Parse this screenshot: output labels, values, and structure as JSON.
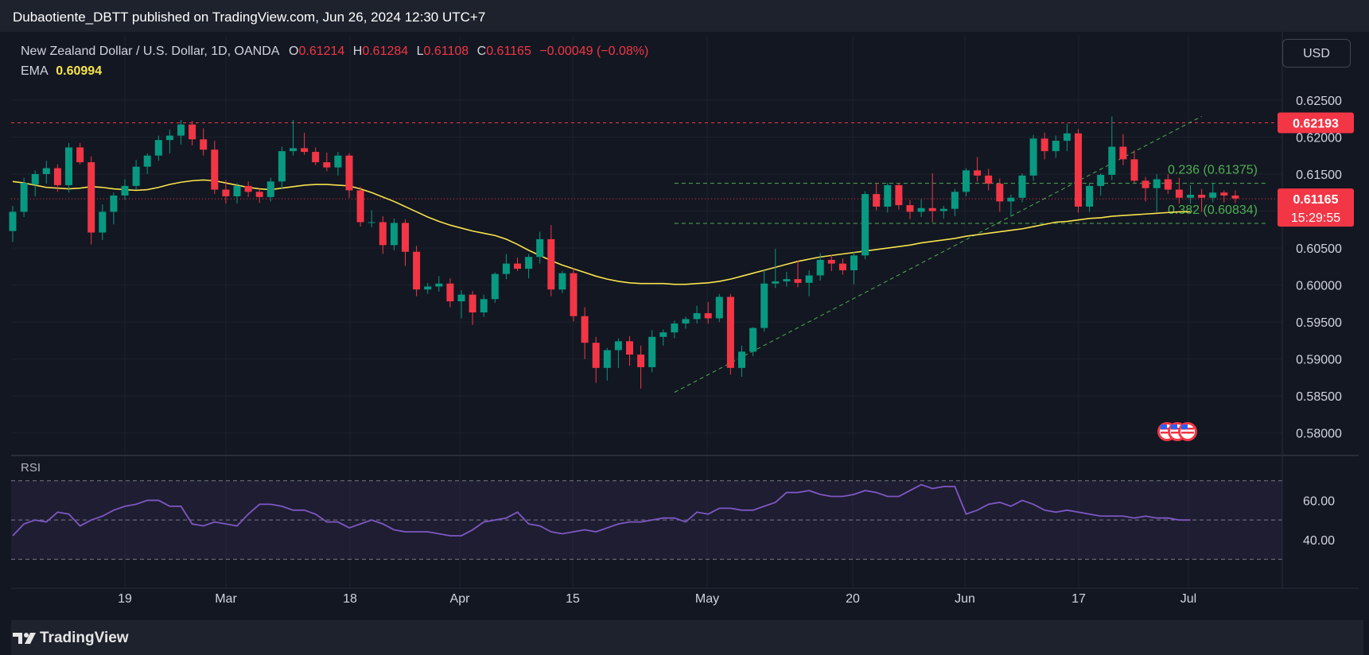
{
  "header": {
    "publisher": "Dubaotiente_DBTT published on TradingView.com, Jun 26, 2024 12:30 UTC+7"
  },
  "legend": {
    "symbol": "New Zealand Dollar / U.S. Dollar, 1D, OANDA",
    "o_label": "O",
    "o_value": "0.61214",
    "h_label": "H",
    "h_value": "0.61284",
    "l_label": "L",
    "l_value": "0.61108",
    "c_label": "C",
    "c_value": "0.61165",
    "change": "−0.00049 (−0.08%)",
    "ema_label": "EMA",
    "ema_value": "0.60994"
  },
  "currency_button": "USD",
  "rsi_label": "RSI",
  "footer": {
    "brand": "TradingView"
  },
  "colors": {
    "up": "#089981",
    "down": "#f23645",
    "ema": "#f7e34c",
    "rsi": "#7e57c2",
    "fib": "#4caf50",
    "background": "#131722"
  },
  "chart_data": {
    "type": "candlestick",
    "symbol": "NZDUSD",
    "y_range": [
      0.5775,
      0.628
    ],
    "price_ticks": [
      "0.62500",
      "0.62000",
      "0.61500",
      "0.61000",
      "0.60500",
      "0.60000",
      "0.59500",
      "0.59000",
      "0.58500",
      "0.58000"
    ],
    "x_ticks": [
      "19",
      "Mar",
      "18",
      "Apr",
      "15",
      "May",
      "20",
      "Jun",
      "17",
      "Jul"
    ],
    "last_price_label": "0.61165",
    "countdown_label": "15:29:55",
    "resistance_label": "0.62193",
    "resistance": 0.62193,
    "last_price": 0.61165,
    "fib_levels": [
      {
        "label": "0.236 (0.61375)",
        "value": 0.61375
      },
      {
        "label": "0.382 (0.60834)",
        "value": 0.60834
      }
    ],
    "trendline": {
      "from": {
        "index": 59,
        "price": 0.5855
      },
      "to": {
        "index": 106,
        "price": 0.6228
      }
    },
    "fib_start_index": 59,
    "candles": [
      [
        0.6073,
        0.6107,
        0.6058,
        0.6099
      ],
      [
        0.6099,
        0.6145,
        0.6092,
        0.6138
      ],
      [
        0.6136,
        0.6155,
        0.612,
        0.615
      ],
      [
        0.615,
        0.6168,
        0.6137,
        0.6158
      ],
      [
        0.6158,
        0.6163,
        0.6126,
        0.6135
      ],
      [
        0.6135,
        0.6192,
        0.6125,
        0.6186
      ],
      [
        0.6186,
        0.6192,
        0.6163,
        0.6166
      ],
      [
        0.6166,
        0.6174,
        0.6055,
        0.6071
      ],
      [
        0.6071,
        0.6109,
        0.6061,
        0.6099
      ],
      [
        0.6099,
        0.6125,
        0.6082,
        0.6121
      ],
      [
        0.6121,
        0.6143,
        0.6115,
        0.6134
      ],
      [
        0.6134,
        0.6169,
        0.6129,
        0.616
      ],
      [
        0.616,
        0.6178,
        0.615,
        0.6175
      ],
      [
        0.6175,
        0.6202,
        0.6168,
        0.6196
      ],
      [
        0.6196,
        0.621,
        0.6178,
        0.6202
      ],
      [
        0.6202,
        0.6223,
        0.619,
        0.6217
      ],
      [
        0.6217,
        0.6222,
        0.6189,
        0.6197
      ],
      [
        0.6197,
        0.6212,
        0.6175,
        0.6183
      ],
      [
        0.6183,
        0.6195,
        0.6123,
        0.6129
      ],
      [
        0.6129,
        0.6142,
        0.611,
        0.612
      ],
      [
        0.612,
        0.6138,
        0.611,
        0.6134
      ],
      [
        0.6134,
        0.614,
        0.6119,
        0.6126
      ],
      [
        0.6126,
        0.613,
        0.6111,
        0.6119
      ],
      [
        0.6119,
        0.6145,
        0.6113,
        0.614
      ],
      [
        0.614,
        0.6187,
        0.613,
        0.6181
      ],
      [
        0.6181,
        0.6223,
        0.6175,
        0.6185
      ],
      [
        0.6185,
        0.6206,
        0.6176,
        0.618
      ],
      [
        0.618,
        0.6186,
        0.6162,
        0.6166
      ],
      [
        0.6166,
        0.6179,
        0.6154,
        0.6159
      ],
      [
        0.6159,
        0.618,
        0.6148,
        0.6175
      ],
      [
        0.6175,
        0.6178,
        0.6118,
        0.6128
      ],
      [
        0.6128,
        0.6133,
        0.6079,
        0.6085
      ],
      [
        0.6085,
        0.6101,
        0.6078,
        0.6085
      ],
      [
        0.6085,
        0.6093,
        0.6042,
        0.6054
      ],
      [
        0.6054,
        0.609,
        0.6047,
        0.6084
      ],
      [
        0.6084,
        0.6089,
        0.6026,
        0.6045
      ],
      [
        0.6045,
        0.6053,
        0.5985,
        0.5994
      ],
      [
        0.5994,
        0.6003,
        0.5988,
        0.5998
      ],
      [
        0.5998,
        0.6012,
        0.5991,
        0.6002
      ],
      [
        0.6002,
        0.6009,
        0.597,
        0.5978
      ],
      [
        0.5978,
        0.5993,
        0.5955,
        0.5987
      ],
      [
        0.5987,
        0.5992,
        0.5946,
        0.5963
      ],
      [
        0.5963,
        0.5987,
        0.5957,
        0.5981
      ],
      [
        0.5981,
        0.6017,
        0.5976,
        0.6015
      ],
      [
        0.6015,
        0.6042,
        0.6008,
        0.6029
      ],
      [
        0.6029,
        0.6037,
        0.6019,
        0.6022
      ],
      [
        0.6022,
        0.6042,
        0.6009,
        0.6038
      ],
      [
        0.6038,
        0.6072,
        0.6029,
        0.6062
      ],
      [
        0.6062,
        0.6081,
        0.5985,
        0.5994
      ],
      [
        0.5994,
        0.6019,
        0.5989,
        0.6016
      ],
      [
        0.6016,
        0.6023,
        0.5951,
        0.5958
      ],
      [
        0.5958,
        0.597,
        0.59,
        0.5922
      ],
      [
        0.5922,
        0.593,
        0.5868,
        0.5888
      ],
      [
        0.5888,
        0.5915,
        0.5871,
        0.5912
      ],
      [
        0.5912,
        0.5928,
        0.5888,
        0.5924
      ],
      [
        0.5924,
        0.5931,
        0.5891,
        0.5906
      ],
      [
        0.5906,
        0.5918,
        0.586,
        0.5889
      ],
      [
        0.5889,
        0.5939,
        0.5882,
        0.593
      ],
      [
        0.593,
        0.594,
        0.5918,
        0.5936
      ],
      [
        0.5936,
        0.5952,
        0.5928,
        0.5948
      ],
      [
        0.5948,
        0.5957,
        0.5941,
        0.5954
      ],
      [
        0.5954,
        0.5972,
        0.5948,
        0.5962
      ],
      [
        0.5962,
        0.5977,
        0.5948,
        0.5955
      ],
      [
        0.5955,
        0.5988,
        0.595,
        0.5984
      ],
      [
        0.5984,
        0.5988,
        0.5879,
        0.5888
      ],
      [
        0.5888,
        0.5918,
        0.5876,
        0.591
      ],
      [
        0.591,
        0.5943,
        0.5904,
        0.5942
      ],
      [
        0.5942,
        0.602,
        0.5937,
        0.6002
      ],
      [
        0.6002,
        0.6049,
        0.5996,
        0.6005
      ],
      [
        0.6005,
        0.6018,
        0.5998,
        0.6008
      ],
      [
        0.6008,
        0.6033,
        0.5997,
        0.6003
      ],
      [
        0.6003,
        0.602,
        0.5985,
        0.6013
      ],
      [
        0.6013,
        0.6043,
        0.6006,
        0.6034
      ],
      [
        0.6034,
        0.6041,
        0.6019,
        0.6029
      ],
      [
        0.6029,
        0.6036,
        0.6014,
        0.602
      ],
      [
        0.602,
        0.6045,
        0.6001,
        0.604
      ],
      [
        0.604,
        0.6127,
        0.6035,
        0.6123
      ],
      [
        0.6123,
        0.6138,
        0.6101,
        0.6106
      ],
      [
        0.6106,
        0.6138,
        0.6098,
        0.6135
      ],
      [
        0.6135,
        0.6138,
        0.6102,
        0.6108
      ],
      [
        0.6108,
        0.6115,
        0.6089,
        0.6099
      ],
      [
        0.6099,
        0.6116,
        0.6092,
        0.6104
      ],
      [
        0.6104,
        0.6151,
        0.6085,
        0.61
      ],
      [
        0.61,
        0.6107,
        0.609,
        0.6103
      ],
      [
        0.6103,
        0.613,
        0.6093,
        0.6126
      ],
      [
        0.6126,
        0.6158,
        0.612,
        0.6155
      ],
      [
        0.6155,
        0.6173,
        0.614,
        0.6148
      ],
      [
        0.6148,
        0.6157,
        0.6128,
        0.6137
      ],
      [
        0.6137,
        0.6144,
        0.6099,
        0.6113
      ],
      [
        0.6113,
        0.6122,
        0.6093,
        0.6118
      ],
      [
        0.6118,
        0.6151,
        0.6112,
        0.6148
      ],
      [
        0.6148,
        0.6203,
        0.6141,
        0.6198
      ],
      [
        0.6198,
        0.6206,
        0.617,
        0.6181
      ],
      [
        0.6181,
        0.6202,
        0.6172,
        0.6195
      ],
      [
        0.6195,
        0.6218,
        0.6181,
        0.6205
      ],
      [
        0.6205,
        0.6211,
        0.6098,
        0.6106
      ],
      [
        0.6106,
        0.6138,
        0.6099,
        0.6134
      ],
      [
        0.6134,
        0.6151,
        0.6121,
        0.6149
      ],
      [
        0.6149,
        0.6228,
        0.6142,
        0.6187
      ],
      [
        0.6187,
        0.6204,
        0.6162,
        0.617
      ],
      [
        0.617,
        0.6182,
        0.6138,
        0.6141
      ],
      [
        0.6141,
        0.6146,
        0.6113,
        0.6131
      ],
      [
        0.6131,
        0.615,
        0.6099,
        0.6143
      ],
      [
        0.6143,
        0.615,
        0.6123,
        0.6129
      ],
      [
        0.6129,
        0.6145,
        0.611,
        0.6118
      ],
      [
        0.6118,
        0.6135,
        0.611,
        0.6122
      ],
      [
        0.6122,
        0.613,
        0.6099,
        0.6118
      ],
      [
        0.6118,
        0.6138,
        0.6112,
        0.6125
      ],
      [
        0.6125,
        0.6128,
        0.6112,
        0.6121
      ],
      [
        0.6121,
        0.6128,
        0.6111,
        0.6117
      ]
    ],
    "ema": [
      0.614,
      0.6138,
      0.6135,
      0.6132,
      0.6131,
      0.613,
      0.6131,
      0.6133,
      0.6132,
      0.613,
      0.6129,
      0.6128,
      0.6129,
      0.6132,
      0.6136,
      0.6139,
      0.6141,
      0.6142,
      0.6141,
      0.6138,
      0.6135,
      0.6132,
      0.613,
      0.6129,
      0.6131,
      0.6133,
      0.6135,
      0.6136,
      0.6136,
      0.6135,
      0.6134,
      0.613,
      0.6125,
      0.6119,
      0.6113,
      0.6106,
      0.6099,
      0.6092,
      0.6086,
      0.6081,
      0.6077,
      0.6073,
      0.607,
      0.6067,
      0.6062,
      0.6055,
      0.6047,
      0.604,
      0.6033,
      0.6027,
      0.6022,
      0.6017,
      0.6012,
      0.6008,
      0.6005,
      0.6003,
      0.6002,
      0.6002,
      0.6002,
      0.6001,
      0.6001,
      0.6002,
      0.6003,
      0.6005,
      0.6008,
      0.6012,
      0.6016,
      0.602,
      0.6024,
      0.6028,
      0.6032,
      0.6035,
      0.6038,
      0.604,
      0.6042,
      0.6044,
      0.6046,
      0.6048,
      0.605,
      0.6052,
      0.6054,
      0.6057,
      0.6059,
      0.6061,
      0.6063,
      0.6066,
      0.6068,
      0.607,
      0.6072,
      0.6074,
      0.6076,
      0.6079,
      0.6082,
      0.6085,
      0.6086,
      0.6088,
      0.609,
      0.6091,
      0.6093,
      0.6094,
      0.6095,
      0.6096,
      0.6097,
      0.6098,
      0.6099,
      0.6099
    ],
    "rsi": {
      "ticks": [
        "60.00",
        "40.00"
      ],
      "y_range": [
        25,
        80
      ],
      "upper": 70,
      "middle": 50,
      "lower": 30,
      "values": [
        42,
        48,
        50,
        49,
        54,
        53,
        47,
        50,
        52,
        55,
        57,
        58,
        60,
        60,
        57,
        57,
        48,
        47,
        49,
        48,
        47,
        53,
        58,
        58,
        57,
        55,
        55,
        53,
        49,
        49,
        46,
        48,
        50,
        48,
        45,
        44,
        44,
        44,
        43,
        42,
        42,
        45,
        49,
        50,
        51,
        54,
        48,
        47,
        44,
        43,
        44,
        45,
        44,
        46,
        48,
        49,
        49,
        50,
        51,
        51,
        49,
        54,
        53,
        56,
        56,
        55,
        55,
        57,
        59,
        64,
        64,
        65,
        63,
        62,
        62,
        63,
        65,
        64,
        62,
        62,
        65,
        68,
        66,
        67,
        67,
        53,
        55,
        58,
        59,
        57,
        60,
        58,
        55,
        54,
        55,
        54,
        53,
        52,
        52,
        52,
        51,
        52,
        51,
        51,
        50,
        50
      ]
    }
  }
}
